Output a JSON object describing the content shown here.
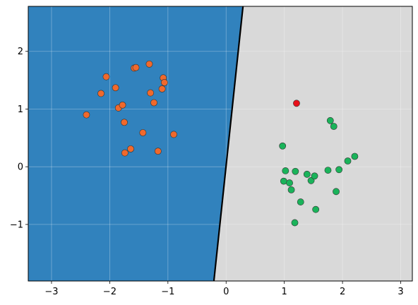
{
  "chart_data": {
    "type": "scatter",
    "title": "",
    "xlabel": "",
    "ylabel": "",
    "xlim": [
      -3.4,
      3.2
    ],
    "ylim": [
      -1.98,
      2.78
    ],
    "grid": true,
    "x_ticks": [
      -3,
      -2,
      -1,
      0,
      1,
      2,
      3
    ],
    "y_ticks": [
      -1,
      0,
      1,
      2
    ],
    "x_tick_labels": [
      "−3",
      "−2",
      "−1",
      "0",
      "1",
      "2",
      "3"
    ],
    "y_tick_labels": [
      "−1",
      "0",
      "1",
      "2"
    ],
    "decision_boundary": {
      "points": [
        [
          -0.21,
          -1.98
        ],
        [
          0.29,
          2.78
        ]
      ],
      "color": "#000000"
    },
    "regions": [
      {
        "side": "left",
        "color": "#3182bd"
      },
      {
        "side": "right",
        "color": "#d9d9d9"
      }
    ],
    "series": [
      {
        "color": "#f0692c",
        "points": [
          [
            -2.4,
            0.9
          ],
          [
            -2.15,
            1.27
          ],
          [
            -2.06,
            1.56
          ],
          [
            -1.9,
            1.37
          ],
          [
            -1.85,
            1.02
          ],
          [
            -1.78,
            1.07
          ],
          [
            -1.75,
            0.77
          ],
          [
            -1.74,
            0.24
          ],
          [
            -1.64,
            0.31
          ],
          [
            -1.58,
            1.71
          ],
          [
            -1.55,
            1.72
          ],
          [
            -1.43,
            0.59
          ],
          [
            -1.32,
            1.78
          ],
          [
            -1.3,
            1.28
          ],
          [
            -1.24,
            1.11
          ],
          [
            -1.17,
            0.27
          ],
          [
            -1.1,
            1.35
          ],
          [
            -1.08,
            1.54
          ],
          [
            -1.06,
            1.46
          ],
          [
            -0.9,
            0.56
          ]
        ]
      },
      {
        "color": "#1ab35a",
        "points": [
          [
            0.97,
            0.36
          ],
          [
            0.99,
            -0.25
          ],
          [
            1.02,
            -0.07
          ],
          [
            1.09,
            -0.28
          ],
          [
            1.12,
            -0.4
          ],
          [
            1.18,
            -0.97
          ],
          [
            1.19,
            -0.08
          ],
          [
            1.28,
            -0.61
          ],
          [
            1.39,
            -0.13
          ],
          [
            1.46,
            -0.24
          ],
          [
            1.52,
            -0.16
          ],
          [
            1.54,
            -0.74
          ],
          [
            1.75,
            -0.06
          ],
          [
            1.79,
            0.8
          ],
          [
            1.85,
            0.7
          ],
          [
            1.89,
            -0.43
          ],
          [
            1.94,
            -0.05
          ],
          [
            2.09,
            0.1
          ],
          [
            2.21,
            0.18
          ]
        ]
      },
      {
        "color": "#e8101a",
        "points": [
          [
            1.21,
            1.1
          ]
        ]
      }
    ]
  }
}
